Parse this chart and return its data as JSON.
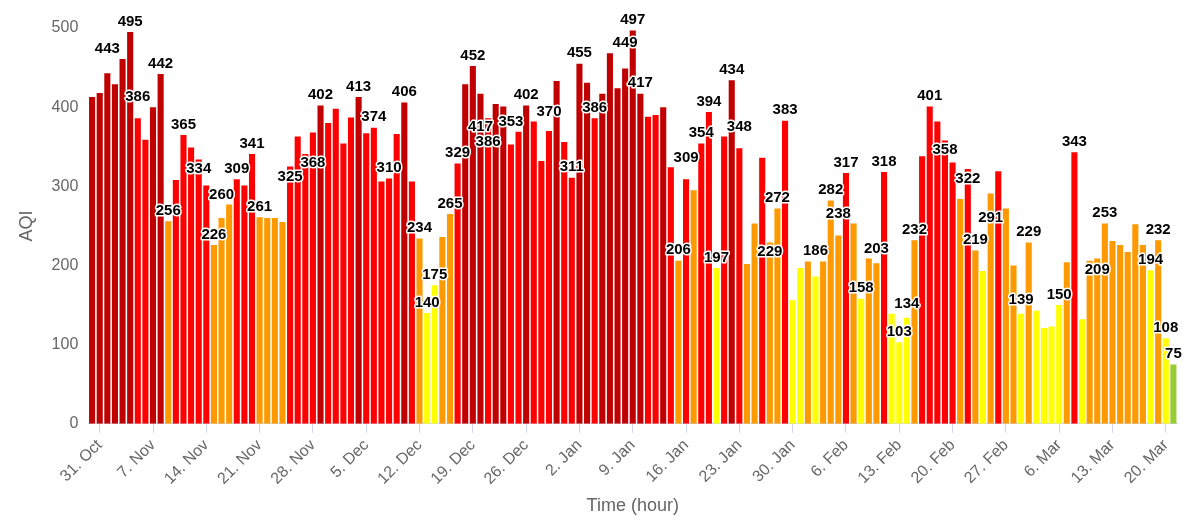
{
  "chart_data": {
    "type": "bar",
    "xlabel": "Time (hour)",
    "ylabel": "AQI",
    "categories": [
      null,
      "31. Oct",
      null,
      null,
      null,
      null,
      null,
      null,
      "7. Nov",
      null,
      null,
      null,
      null,
      null,
      null,
      "14. Nov",
      null,
      null,
      null,
      null,
      null,
      null,
      "21. Nov",
      null,
      null,
      null,
      null,
      null,
      null,
      "28. Nov",
      null,
      null,
      null,
      null,
      null,
      null,
      "5. Dec",
      null,
      null,
      null,
      null,
      null,
      null,
      "12. Dec",
      null,
      null,
      null,
      null,
      null,
      null,
      "19. Dec",
      null,
      null,
      null,
      null,
      null,
      null,
      "26. Dec",
      null,
      null,
      null,
      null,
      null,
      null,
      "2. Jan",
      null,
      null,
      null,
      null,
      null,
      null,
      "9. Jan",
      null,
      null,
      null,
      null,
      null,
      null,
      "16. Jan",
      null,
      null,
      null,
      null,
      null,
      null,
      "23. Jan",
      null,
      null,
      null,
      null,
      null,
      null,
      "30. Jan",
      null,
      null,
      null,
      null,
      null,
      null,
      "6. Feb",
      null,
      null,
      null,
      null,
      null,
      null,
      "13. Feb",
      null,
      null,
      null,
      null,
      null,
      null,
      "20. Feb",
      null,
      null,
      null,
      null,
      null,
      null,
      "27. Feb",
      null,
      null,
      null,
      null,
      null,
      null,
      "6. Mar",
      null,
      null,
      null,
      null,
      null,
      null,
      "13. Mar",
      null,
      null,
      null,
      null,
      null,
      null,
      "20. Mar",
      null
    ],
    "values": [
      413,
      418,
      443,
      429,
      461,
      495,
      386,
      359,
      400,
      442,
      256,
      308,
      365,
      349,
      334,
      301,
      226,
      260,
      277,
      309,
      301,
      341,
      261,
      260,
      260,
      255,
      325,
      363,
      341,
      368,
      402,
      380,
      398,
      354,
      387,
      413,
      367,
      374,
      306,
      310,
      366,
      406,
      306,
      234,
      140,
      175,
      236,
      265,
      329,
      429,
      452,
      417,
      386,
      404,
      401,
      353,
      369,
      402,
      382,
      332,
      370,
      433,
      356,
      311,
      455,
      431,
      386,
      417,
      468,
      424,
      449,
      497,
      417,
      388,
      390,
      400,
      324,
      206,
      309,
      295,
      354,
      394,
      197,
      363,
      434,
      348,
      202,
      253,
      336,
      229,
      272,
      383,
      156,
      197,
      205,
      186,
      205,
      282,
      238,
      317,
      253,
      158,
      209,
      203,
      318,
      139,
      103,
      134,
      232,
      338,
      401,
      382,
      358,
      330,
      284,
      322,
      219,
      193,
      291,
      319,
      272,
      200,
      139,
      229,
      143,
      121,
      123,
      150,
      204,
      343,
      132,
      206,
      209,
      253,
      231,
      226,
      217,
      252,
      226,
      194,
      232,
      108,
      75
    ],
    "colors": [
      "#c00000",
      "#c00000",
      "#c00000",
      "#c00000",
      "#c00000",
      "#c00000",
      "#ff0000",
      "#ff0000",
      "#c00000",
      "#c00000",
      "#ff9900",
      "#ff0000",
      "#ff0000",
      "#ff0000",
      "#ff0000",
      "#ff0000",
      "#ff9900",
      "#ff9900",
      "#ff9900",
      "#ff0000",
      "#ff0000",
      "#ff0000",
      "#ff9900",
      "#ff9900",
      "#ff9900",
      "#ff9900",
      "#ff0000",
      "#ff0000",
      "#ff0000",
      "#ff0000",
      "#c00000",
      "#ff0000",
      "#ff0000",
      "#ff0000",
      "#ff0000",
      "#c00000",
      "#ff0000",
      "#ff0000",
      "#ff0000",
      "#ff0000",
      "#ff0000",
      "#c00000",
      "#ff0000",
      "#ff9900",
      "#ffff00",
      "#ffff00",
      "#ff9900",
      "#ff9900",
      "#ff0000",
      "#c00000",
      "#c00000",
      "#c00000",
      "#ff0000",
      "#c00000",
      "#c00000",
      "#ff0000",
      "#ff0000",
      "#c00000",
      "#ff0000",
      "#ff0000",
      "#ff0000",
      "#c00000",
      "#ff0000",
      "#ff0000",
      "#c00000",
      "#c00000",
      "#ff0000",
      "#c00000",
      "#c00000",
      "#c00000",
      "#c00000",
      "#c00000",
      "#c00000",
      "#ff0000",
      "#ff0000",
      "#c00000",
      "#ff0000",
      "#ff9900",
      "#ff0000",
      "#ff9900",
      "#ff0000",
      "#ff0000",
      "#ffff00",
      "#ff0000",
      "#c00000",
      "#ff0000",
      "#ff9900",
      "#ff9900",
      "#ff0000",
      "#ff9900",
      "#ff9900",
      "#ff0000",
      "#ffff00",
      "#ffff00",
      "#ff9900",
      "#ffff00",
      "#ff9900",
      "#ff9900",
      "#ff9900",
      "#ff0000",
      "#ff9900",
      "#ffff00",
      "#ff9900",
      "#ff9900",
      "#ff0000",
      "#ffff00",
      "#ffff00",
      "#ffff00",
      "#ff9900",
      "#ff0000",
      "#ff0000",
      "#ff0000",
      "#ff0000",
      "#ff0000",
      "#ff9900",
      "#ff0000",
      "#ff9900",
      "#ffff00",
      "#ff9900",
      "#ff0000",
      "#ff9900",
      "#ff9900",
      "#ffff00",
      "#ff9900",
      "#ffff00",
      "#ffff00",
      "#ffff00",
      "#ffff00",
      "#ff9900",
      "#ff0000",
      "#ffff00",
      "#ff9900",
      "#ff9900",
      "#ff9900",
      "#ff9900",
      "#ff9900",
      "#ff9900",
      "#ff9900",
      "#ff9900",
      "#ffff00",
      "#ff9900",
      "#ffff00",
      "#99cc33"
    ],
    "value_labels": [
      null,
      null,
      "443",
      null,
      null,
      "495",
      "386",
      null,
      null,
      "442",
      "256",
      null,
      "365",
      null,
      "334",
      null,
      "226",
      "260",
      null,
      "309",
      null,
      "341",
      "261",
      null,
      null,
      null,
      "325",
      null,
      null,
      "368",
      "402",
      null,
      null,
      null,
      null,
      "413",
      null,
      "374",
      null,
      "310",
      null,
      "406",
      null,
      "234",
      "140",
      "175",
      null,
      "265",
      "329",
      null,
      "452",
      "417",
      "386",
      null,
      null,
      "353",
      null,
      "402",
      null,
      null,
      "370",
      null,
      null,
      "311",
      "455",
      null,
      "386",
      null,
      null,
      null,
      "449",
      "497",
      "417",
      null,
      null,
      null,
      null,
      "206",
      "309",
      null,
      "354",
      "394",
      "197",
      null,
      "434",
      "348",
      null,
      null,
      null,
      "229",
      "272",
      "383",
      null,
      null,
      null,
      "186",
      null,
      "282",
      "238",
      "317",
      null,
      "158",
      null,
      "203",
      "318",
      null,
      "103",
      "134",
      "232",
      null,
      "401",
      null,
      "358",
      null,
      null,
      "322",
      "219",
      null,
      "291",
      null,
      null,
      null,
      "139",
      "229",
      null,
      null,
      null,
      "150",
      null,
      "343",
      null,
      null,
      "209",
      "253",
      null,
      null,
      null,
      null,
      null,
      "194",
      "232",
      "108",
      "75"
    ],
    "ylim": [
      0,
      500
    ],
    "yticks": [
      0,
      100,
      200,
      300,
      400,
      500
    ]
  }
}
